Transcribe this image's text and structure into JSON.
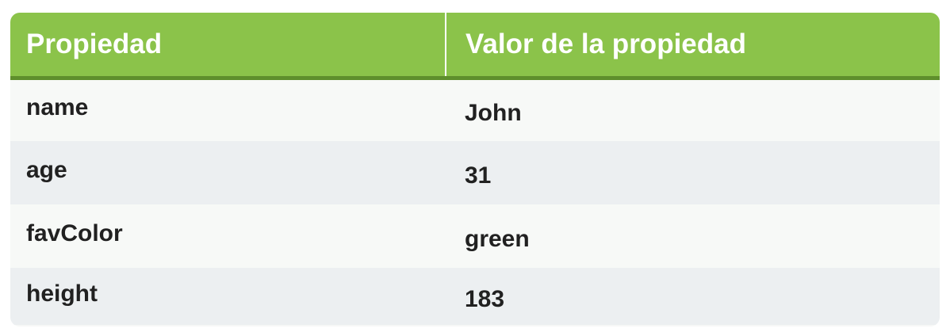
{
  "table": {
    "headers": [
      "Propiedad",
      "Valor de la propiedad"
    ],
    "rows": [
      {
        "property": "name",
        "value": "John"
      },
      {
        "property": "age",
        "value": "31"
      },
      {
        "property": "favColor",
        "value": "green"
      },
      {
        "property": "height",
        "value": "183"
      }
    ]
  },
  "colors": {
    "header_bg": "#8bc34a",
    "header_border": "#5e8f2c",
    "row_light": "#f7f9f7",
    "row_dark": "#eceff1",
    "text": "#212121"
  }
}
